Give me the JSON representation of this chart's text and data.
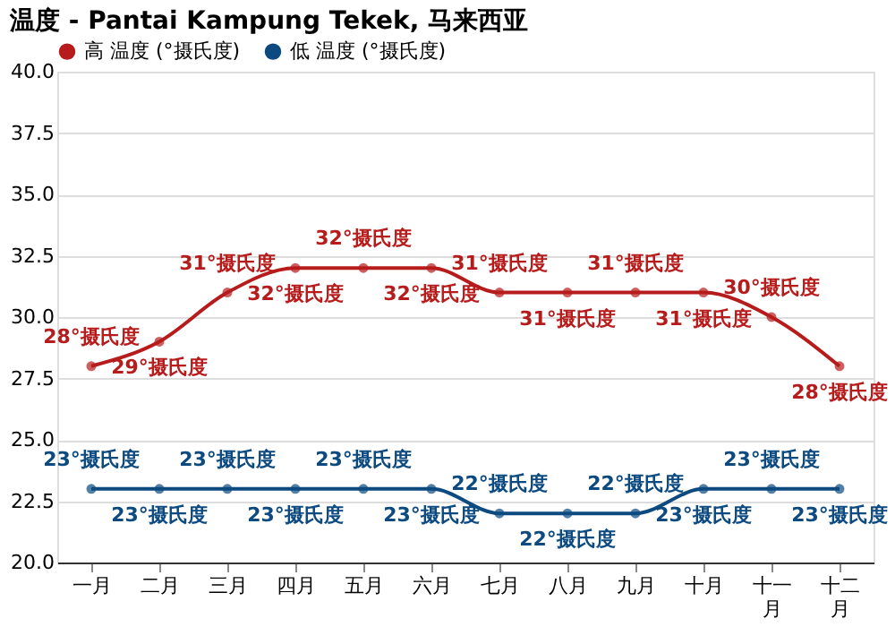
{
  "chart_data": {
    "type": "line",
    "title": "温度 - Pantai Kampung Tekek, 马来西亚",
    "categories": [
      "一月",
      "二月",
      "三月",
      "四月",
      "五月",
      "六月",
      "七月",
      "八月",
      "九月",
      "十月",
      "十一月",
      "十二月"
    ],
    "series": [
      {
        "name": "高 温度 (°摄氏度)",
        "color": "#b71c1c",
        "values": [
          28,
          29,
          31,
          32,
          32,
          32,
          31,
          31,
          31,
          31,
          30,
          28
        ],
        "value_labels": [
          "28°摄氏度",
          "29°摄氏度",
          "31°摄氏度",
          "32°摄氏度",
          "32°摄氏度",
          "32°摄氏度",
          "31°摄氏度",
          "31°摄氏度",
          "31°摄氏度",
          "31°摄氏度",
          "30°摄氏度",
          "28°摄氏度"
        ]
      },
      {
        "name": "低 温度 (°摄氏度)",
        "color": "#0d4a80",
        "values": [
          23,
          23,
          23,
          23,
          23,
          23,
          22,
          22,
          22,
          23,
          23,
          23
        ],
        "value_labels": [
          "23°摄氏度",
          "23°摄氏度",
          "23°摄氏度",
          "23°摄氏度",
          "23°摄氏度",
          "23°摄氏度",
          "22°摄氏度",
          "22°摄氏度",
          "22°摄氏度",
          "23°摄氏度",
          "23°摄氏度",
          "23°摄氏度"
        ]
      }
    ],
    "ylim": [
      20,
      40
    ],
    "yticks": [
      {
        "value": 20,
        "label": "20.0"
      },
      {
        "value": 22.5,
        "label": "22.5"
      },
      {
        "value": 25,
        "label": "25.0"
      },
      {
        "value": 27.5,
        "label": "27.5"
      },
      {
        "value": 30,
        "label": "30.0"
      },
      {
        "value": 32.5,
        "label": "32.5"
      },
      {
        "value": 35,
        "label": "35.0"
      },
      {
        "value": 37.5,
        "label": "37.5"
      },
      {
        "value": 40,
        "label": "40.0"
      }
    ],
    "grid": "y",
    "legend": "top left",
    "marker": "circle",
    "line_style": "solid"
  }
}
